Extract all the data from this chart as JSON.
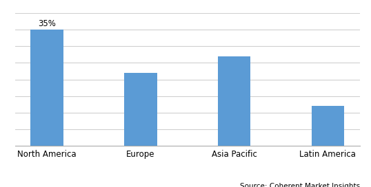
{
  "categories": [
    "North America",
    "Europe",
    "Asia Pacific",
    "Latin America"
  ],
  "values": [
    35,
    22,
    27,
    12
  ],
  "bar_color": "#5B9BD5",
  "annotation_text": "35%",
  "annotation_index": 0,
  "source_text": "Source: Coherent Market Insights",
  "ylim": [
    0,
    40
  ],
  "bar_width": 0.35,
  "background_color": "#ffffff",
  "grid_color": "#d0d0d0",
  "annotation_fontsize": 8.5,
  "xtick_fontsize": 8.5,
  "source_fontsize": 7.5,
  "grid_vals": [
    5,
    10,
    15,
    20,
    25,
    30,
    35,
    40
  ]
}
